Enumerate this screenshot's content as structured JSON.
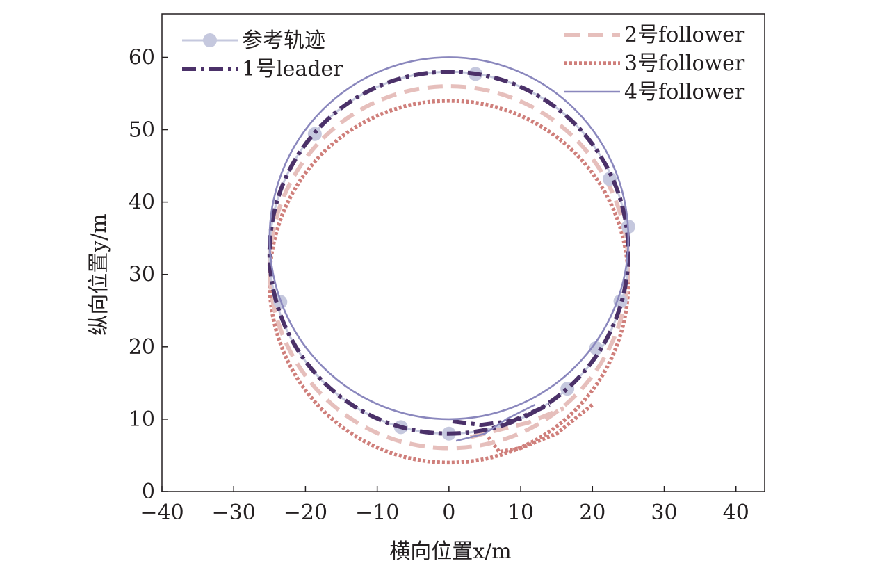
{
  "chart_data": {
    "type": "line",
    "title": "",
    "xlabel": "横向位置x/m",
    "ylabel": "纵向位置y/m",
    "xlim": [
      -40,
      44
    ],
    "ylim": [
      0,
      66
    ],
    "xticks": [
      -40,
      -30,
      -20,
      -10,
      0,
      10,
      20,
      30,
      40
    ],
    "yticks": [
      0,
      10,
      20,
      30,
      40,
      50,
      60
    ],
    "xtick_labels": [
      "−40",
      "−30",
      "−20",
      "−10",
      "0",
      "10",
      "20",
      "30",
      "40"
    ],
    "ytick_labels": [
      "0",
      "10",
      "20",
      "30",
      "40",
      "50",
      "60"
    ],
    "grid": false,
    "legend_position": "top",
    "series": [
      {
        "name": "参考轨迹",
        "color": "#c5c8de",
        "style": "solid-with-markers",
        "center": [
          0,
          33
        ],
        "radius": 25,
        "markers": [
          [
            3.7,
            57.7
          ],
          [
            22.4,
            43.2
          ],
          [
            25.0,
            36.6
          ],
          [
            23.9,
            26.3
          ],
          [
            16.5,
            14.2
          ],
          [
            0.0,
            8.0
          ],
          [
            -6.7,
            8.9
          ],
          [
            -23.5,
            26.2
          ],
          [
            -18.7,
            49.4
          ],
          [
            20.5,
            19.8
          ]
        ]
      },
      {
        "name": "1号leader",
        "color": "#4b3169",
        "style": "dash-dot",
        "center": [
          0,
          33
        ],
        "radius": 25,
        "start": [
          0.5,
          9.7
        ],
        "transient": [
          [
            0.5,
            9.7
          ],
          [
            4.5,
            9.2
          ],
          [
            9.0,
            9.8
          ],
          [
            14.0,
            12.0
          ]
        ]
      },
      {
        "name": "2号follower",
        "color": "#e6bfbc",
        "style": "dashed",
        "center": [
          0,
          31
        ],
        "radius": 25,
        "start": [
          3.0,
          7.5
        ],
        "transient": [
          [
            3.0,
            7.5
          ],
          [
            6.0,
            8.3
          ],
          [
            11.0,
            9.5
          ],
          [
            16.0,
            11.5
          ]
        ]
      },
      {
        "name": "3号follower",
        "color": "#cf7f7b",
        "style": "dotted",
        "center": [
          0,
          29
        ],
        "radius": 25,
        "start": [
          5.5,
          7.5
        ],
        "transient": [
          [
            5.5,
            7.5
          ],
          [
            7.0,
            5.5
          ],
          [
            10.0,
            6.0
          ],
          [
            15.0,
            8.0
          ],
          [
            20.0,
            12.0
          ]
        ]
      },
      {
        "name": "4号follower",
        "color": "#8a87bd",
        "style": "solid",
        "center": [
          0,
          35
        ],
        "radius": 25,
        "start": [
          1.0,
          7.0
        ],
        "transient": [
          [
            1.0,
            7.0
          ],
          [
            5.0,
            8.0
          ],
          [
            8.0,
            10.0
          ],
          [
            12.0,
            12.0
          ]
        ]
      }
    ]
  }
}
